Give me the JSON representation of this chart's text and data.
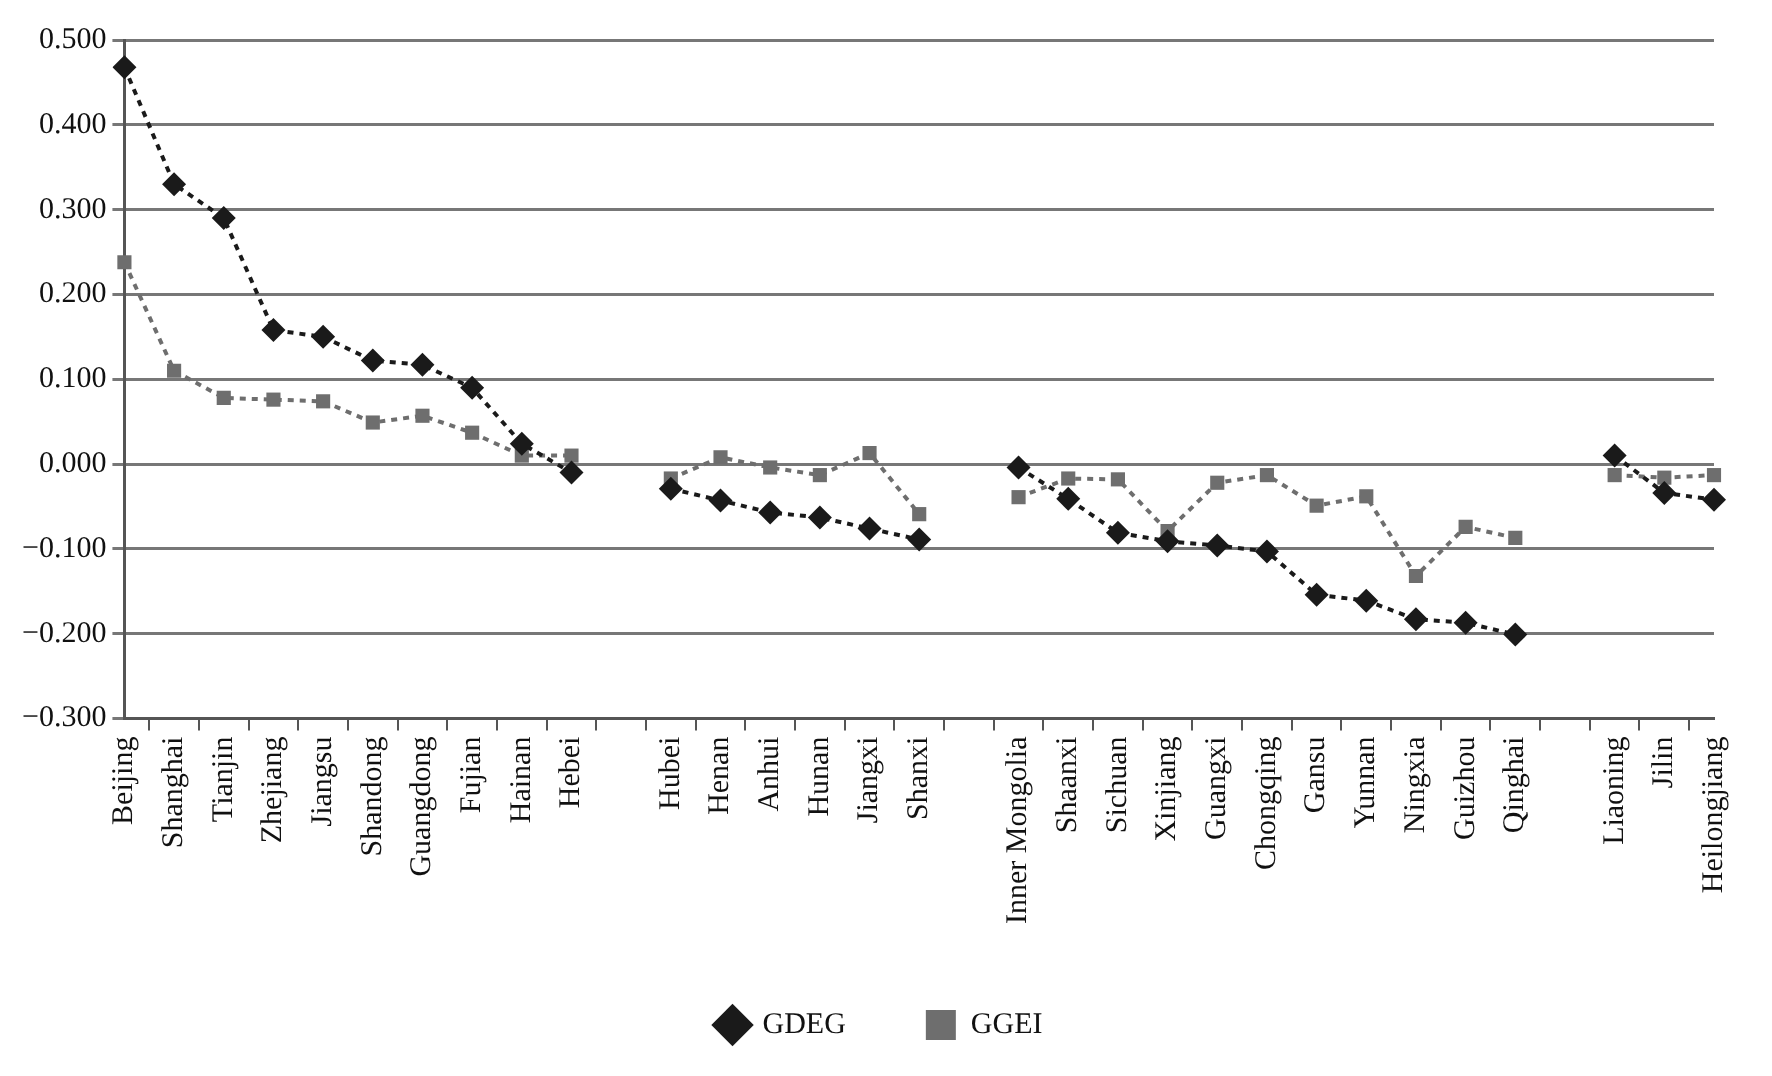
{
  "chart_data": {
    "type": "line",
    "categories": [
      "Beijing",
      "Shanghai",
      "Tianjin",
      "Zhejiang",
      "Jiangsu",
      "Shandong",
      "Guangdong",
      "Fujian",
      "Hainan",
      "Hebei",
      null,
      "Hubei",
      "Henan",
      "Anhui",
      "Hunan",
      "Jiangxi",
      "Shanxi",
      null,
      "Inner Mongolia",
      "Shaanxi",
      "Sichuan",
      "Xinjiang",
      "Guangxi",
      "Chongqing",
      "Gansu",
      "Yunnan",
      "Ningxia",
      "Guizhou",
      "Qinghai",
      null,
      "Liaoning",
      "Jilin",
      "Heilongjiang"
    ],
    "series": [
      {
        "name": "GDEG",
        "color": "#1a1a1a",
        "marker": "diamond",
        "values": [
          0.468,
          0.33,
          0.29,
          0.158,
          0.15,
          0.122,
          0.117,
          0.09,
          0.024,
          -0.01,
          null,
          -0.029,
          -0.043,
          -0.057,
          -0.063,
          -0.076,
          -0.089,
          null,
          -0.004,
          -0.041,
          -0.081,
          -0.091,
          -0.096,
          -0.103,
          -0.154,
          -0.161,
          -0.183,
          -0.187,
          -0.201,
          null,
          0.01,
          -0.034,
          -0.042
        ]
      },
      {
        "name": "GGEI",
        "color": "#6e6e6e",
        "marker": "square",
        "values": [
          0.238,
          0.11,
          0.078,
          0.076,
          0.074,
          0.049,
          0.057,
          0.037,
          0.01,
          0.01,
          null,
          -0.017,
          0.008,
          -0.004,
          -0.013,
          0.013,
          -0.059,
          null,
          -0.039,
          -0.017,
          -0.018,
          -0.079,
          -0.022,
          -0.013,
          -0.049,
          -0.038,
          -0.132,
          -0.074,
          -0.087,
          null,
          -0.013,
          -0.016,
          -0.013
        ]
      }
    ],
    "ylim": [
      -0.3,
      0.5
    ],
    "yticks": [
      {
        "value": 0.5,
        "label": "0.500"
      },
      {
        "value": 0.4,
        "label": "0.400"
      },
      {
        "value": 0.3,
        "label": "0.300"
      },
      {
        "value": 0.2,
        "label": "0.200"
      },
      {
        "value": 0.1,
        "label": "0.100"
      },
      {
        "value": 0,
        "label": "0.000"
      },
      {
        "value": -0.1,
        "label": "−0.100"
      },
      {
        "value": -0.2,
        "label": "−0.200"
      },
      {
        "value": -0.3,
        "label": "−0.300"
      }
    ],
    "grid": "y",
    "legend": "bottom",
    "line_style": "dotted"
  }
}
